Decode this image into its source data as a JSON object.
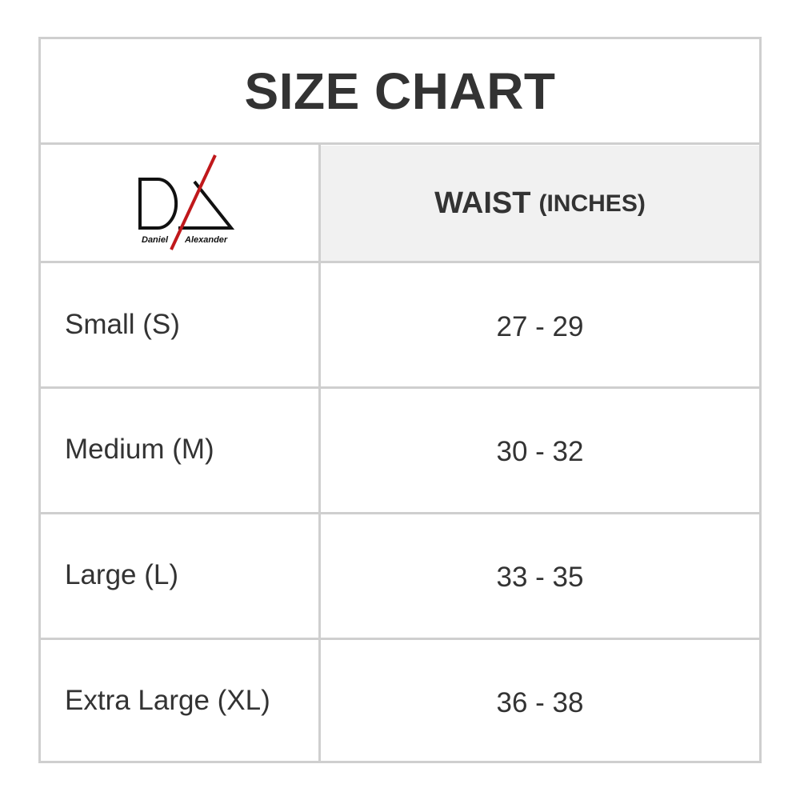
{
  "title": "SIZE CHART",
  "logo": {
    "brand": "Daniel Alexander",
    "letters": "DA",
    "accent_color": "#c0181b"
  },
  "header": {
    "column": "WAIST",
    "unit": "(INCHES)"
  },
  "rows": [
    {
      "size": "Small (S)",
      "waist": "27 - 29"
    },
    {
      "size": "Medium (M)",
      "waist": "30 - 32"
    },
    {
      "size": "Large (L)",
      "waist": "33 - 35"
    },
    {
      "size": "Extra Large (XL)",
      "waist": "36 - 38"
    }
  ]
}
